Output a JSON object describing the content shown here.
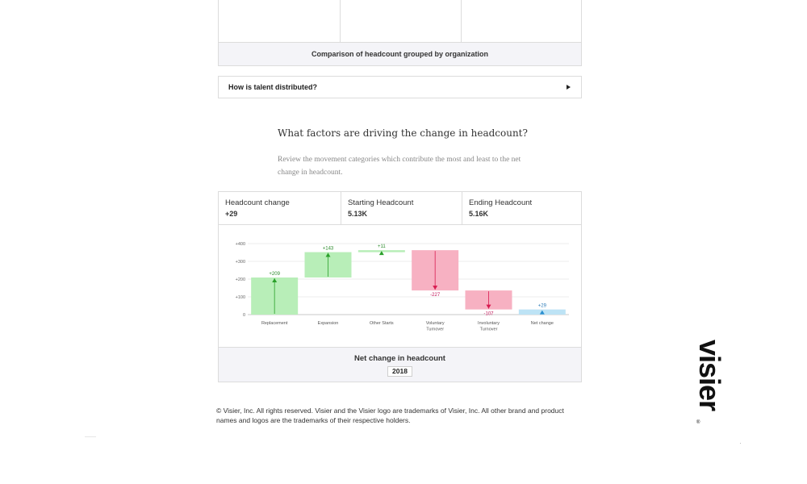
{
  "top_section": {
    "caption": "Comparison of headcount grouped by organization"
  },
  "accordion": {
    "label": "How is talent distributed?"
  },
  "question": {
    "title": "What factors are driving the change in headcount?",
    "description": "Review the movement categories which contribute the most and least to the net change in headcount."
  },
  "metrics": [
    {
      "label": "Headcount change",
      "value": "+29"
    },
    {
      "label": "Starting Headcount",
      "value": "5.13K"
    },
    {
      "label": "Ending Headcount",
      "value": "5.16K"
    }
  ],
  "chart_data": {
    "type": "waterfall",
    "yticks": [
      "+400",
      "+300",
      "+200",
      "+100",
      "0"
    ],
    "ylim": [
      0,
      400
    ],
    "steps": [
      {
        "category": "Replacement",
        "value": 209,
        "label": "+209",
        "start": 0,
        "end": 209,
        "color": "#b8eeb8",
        "marker": "#2aa02a",
        "label_color": "#2a8a2a"
      },
      {
        "category": "Expansion",
        "value": 143,
        "label": "+143",
        "start": 209,
        "end": 352,
        "color": "#b8eeb8",
        "marker": "#2aa02a",
        "label_color": "#2a8a2a"
      },
      {
        "category": "Other Starts",
        "value": 11,
        "label": "+11",
        "start": 352,
        "end": 363,
        "color": "#b8eeb8",
        "marker": "#2aa02a",
        "label_color": "#2a8a2a"
      },
      {
        "category": "Voluntary Turnover",
        "value": -227,
        "label": "-227",
        "start": 363,
        "end": 136,
        "color": "#f7b1c2",
        "marker": "#d81b50",
        "label_color": "#c2185b"
      },
      {
        "category": "Involuntary Turnover",
        "value": -107,
        "label": "-107",
        "start": 136,
        "end": 29,
        "color": "#f7b1c2",
        "marker": "#d81b50",
        "label_color": "#c2185b"
      },
      {
        "category": "Net change",
        "value": 29,
        "label": "+29",
        "start": 0,
        "end": 29,
        "color": "#bde3f5",
        "marker": "#2a8fd0",
        "label_color": "#2a7ab8"
      }
    ],
    "footer_title": "Net change in headcount",
    "footer_badge": "2018"
  },
  "copyright": "© Visier, Inc. All rights reserved. Visier and the Visier logo are trademarks of Visier, Inc. All other brand and product names and logos are the trademarks of their respective holders.",
  "logo": {
    "text": "visier",
    "reg": "®"
  }
}
